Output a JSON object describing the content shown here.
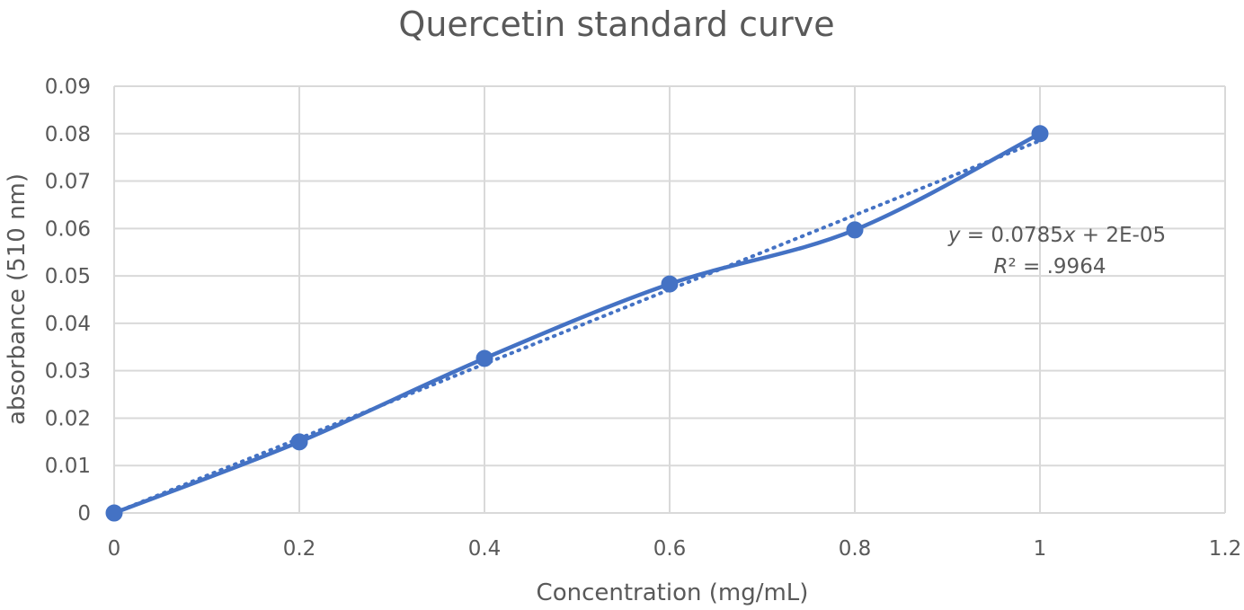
{
  "chart_data": {
    "type": "scatter",
    "title": "Quercetin standard curve",
    "xlabel": "Concentration (mg/mL)",
    "ylabel": "absorbance (510 nm)",
    "xlim": [
      0,
      1.2
    ],
    "ylim": [
      0,
      0.09
    ],
    "x_ticks": [
      "0",
      "0.2",
      "0.4",
      "0.6",
      "0.8",
      "1",
      "1.2"
    ],
    "y_ticks": [
      "0",
      "0.01",
      "0.02",
      "0.03",
      "0.04",
      "0.05",
      "0.06",
      "0.07",
      "0.08",
      "0.09"
    ],
    "grid": true,
    "smoothed_line": true,
    "series": [
      {
        "x": [
          0,
          0.2,
          0.4,
          0.6,
          0.8,
          1.0
        ],
        "y": [
          0.0,
          0.015,
          0.0326,
          0.0483,
          0.0597,
          0.08
        ],
        "color": "#4472c4"
      }
    ],
    "trendline": {
      "type": "linear",
      "slope": 0.0785,
      "intercept": 2e-05,
      "style": "dotted",
      "equation_text": "y = 0.0785x + 2E-05",
      "r2_text": "R² = .9964"
    }
  }
}
